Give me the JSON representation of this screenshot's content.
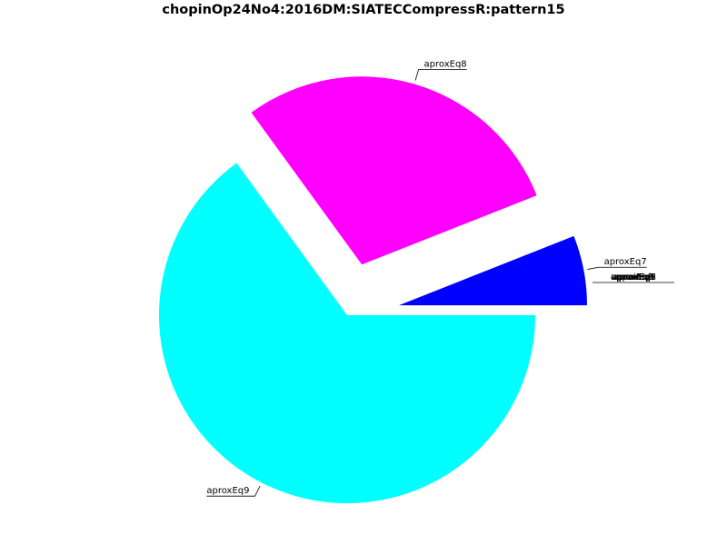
{
  "chart_data": {
    "type": "pie",
    "title": "chopinOp24No4:2016DM:SIATECCompressR:pattern15",
    "slices": [
      {
        "label": "aproxEq7",
        "value": 6,
        "color": "#0000ff",
        "exploded": true
      },
      {
        "label": "aproxEq8",
        "value": 29,
        "color": "#ff00ff",
        "exploded": true
      },
      {
        "label": "aproxEq9",
        "value": 65,
        "color": "#00ffff",
        "exploded": false
      }
    ],
    "zero_value_labels": [
      "unpaired",
      "aproxEq1",
      "aproxEq2",
      "aproxEq3",
      "aproxEq4",
      "aproxEq5",
      "aproxEq6"
    ],
    "start_angle_deg": 0,
    "direction": "counterclockwise",
    "legend": "none",
    "colors": {
      "text": "#000000",
      "background": "#ffffff"
    }
  }
}
